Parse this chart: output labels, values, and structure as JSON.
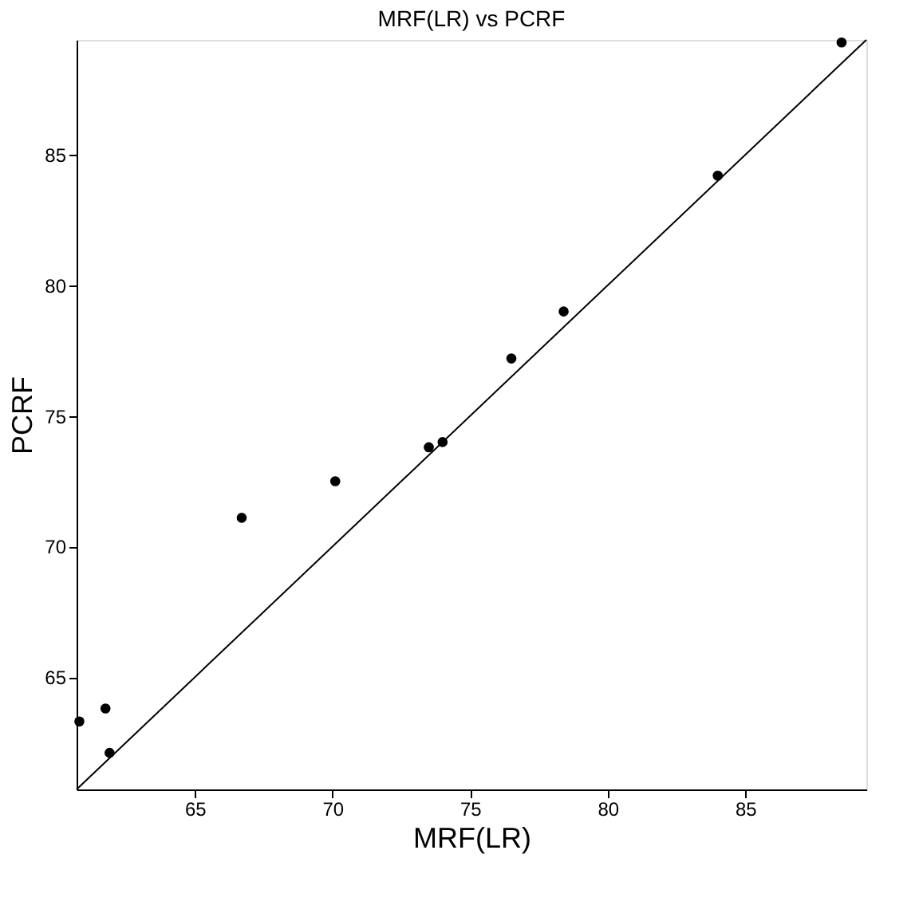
{
  "chart_data": {
    "type": "scatter",
    "title": "MRF(LR) vs PCRF",
    "xlabel": "MRF(LR)",
    "ylabel": "PCRF",
    "xlim": [
      60.7,
      89.4
    ],
    "ylim": [
      60.7,
      89.4
    ],
    "xticks": [
      65,
      70,
      75,
      80,
      85
    ],
    "yticks": [
      65,
      70,
      75,
      80,
      85
    ],
    "grid": false,
    "series": [
      {
        "color": "#000000",
        "marker": "circle",
        "x": [
          60.8,
          61.75,
          61.9,
          66.7,
          70.1,
          73.5,
          74.0,
          76.5,
          78.4,
          84.0,
          88.5
        ],
        "values": [
          63.3,
          63.8,
          62.1,
          71.1,
          72.5,
          73.8,
          74.0,
          77.2,
          79.0,
          84.2,
          89.3
        ]
      },
      {
        "type": "line",
        "color": "#000000",
        "x": [
          60.7,
          89.4
        ],
        "values": [
          60.7,
          89.4
        ]
      }
    ]
  }
}
